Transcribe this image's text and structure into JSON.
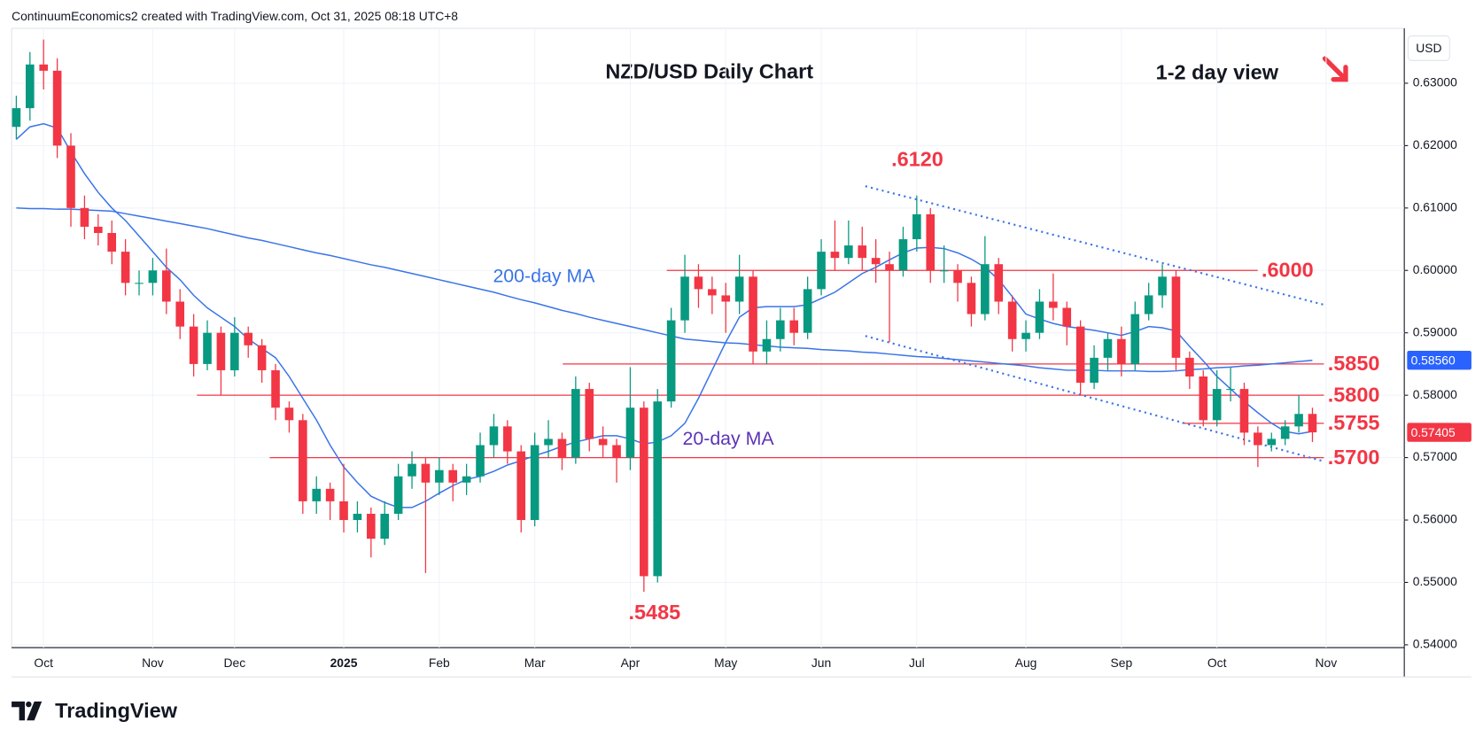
{
  "header": "ContinuumEconomics2 created with TradingView.com, Oct 31, 2025 08:18 UTC+8",
  "branding": "TradingView",
  "chart_data": {
    "type": "candlestick",
    "title": "NZD/USD Daily Chart",
    "subtitle": "1-2 day view",
    "currency": "USD",
    "categories": [
      null,
      null,
      "Oct",
      null,
      null,
      null,
      null,
      null,
      null,
      null,
      "Nov",
      null,
      null,
      null,
      null,
      null,
      "Dec",
      null,
      null,
      null,
      null,
      null,
      null,
      null,
      "2025",
      null,
      null,
      null,
      null,
      null,
      null,
      "Feb",
      null,
      null,
      null,
      null,
      null,
      null,
      "Mar",
      null,
      null,
      null,
      null,
      null,
      null,
      "Apr",
      null,
      null,
      null,
      null,
      null,
      null,
      "May",
      null,
      null,
      null,
      null,
      null,
      null,
      "Jun",
      null,
      null,
      null,
      null,
      null,
      null,
      "Jul",
      null,
      null,
      null,
      null,
      null,
      null,
      null,
      "Aug",
      null,
      null,
      null,
      null,
      null,
      null,
      "Sep",
      null,
      null,
      null,
      null,
      null,
      null,
      "Oct",
      null,
      null,
      null,
      null,
      null,
      null,
      null,
      "Nov"
    ],
    "open": [
      0.623,
      0.626,
      0.633,
      0.632,
      0.62,
      0.61,
      0.607,
      0.606,
      0.603,
      0.598,
      0.598,
      0.6,
      0.595,
      0.591,
      0.585,
      0.59,
      0.584,
      0.59,
      0.588,
      0.584,
      0.578,
      0.576,
      0.563,
      0.565,
      0.563,
      0.56,
      0.561,
      0.557,
      0.561,
      0.567,
      0.569,
      0.566,
      0.568,
      0.566,
      0.567,
      0.572,
      0.575,
      0.571,
      0.56,
      0.572,
      0.573,
      0.57,
      0.581,
      0.573,
      0.572,
      0.57,
      0.578,
      0.551,
      0.579,
      0.592,
      0.599,
      0.597,
      0.596,
      0.595,
      0.599,
      0.587,
      0.589,
      0.592,
      0.59,
      0.597,
      0.603,
      0.602,
      0.604,
      0.602,
      0.601,
      0.6,
      0.605,
      0.609,
      0.6,
      0.6,
      0.598,
      0.593,
      0.601,
      0.595,
      0.589,
      0.59,
      0.595,
      0.594,
      0.591,
      0.582,
      0.586,
      0.589,
      0.585,
      0.593,
      0.596,
      0.599,
      0.586,
      0.583,
      0.576,
      0.581,
      0.581,
      0.574,
      0.572,
      0.573,
      0.575,
      0.577,
      null
    ],
    "high": [
      0.628,
      0.635,
      0.637,
      0.634,
      0.622,
      0.612,
      0.609,
      0.608,
      0.605,
      0.6,
      0.602,
      0.6035,
      0.597,
      0.593,
      0.592,
      0.591,
      0.5925,
      0.591,
      0.589,
      0.585,
      0.579,
      0.577,
      0.567,
      0.566,
      0.569,
      0.563,
      0.562,
      0.563,
      0.569,
      0.571,
      0.57,
      0.57,
      0.569,
      0.569,
      0.574,
      0.577,
      0.576,
      0.572,
      0.574,
      0.576,
      0.574,
      0.583,
      0.582,
      0.575,
      0.573,
      0.5845,
      0.579,
      0.581,
      0.594,
      0.6025,
      0.601,
      0.599,
      0.598,
      0.6025,
      0.6,
      0.592,
      0.594,
      0.594,
      0.599,
      0.605,
      0.608,
      0.608,
      0.607,
      0.605,
      0.603,
      0.607,
      0.612,
      0.61,
      0.604,
      0.601,
      0.599,
      0.6055,
      0.602,
      0.596,
      0.592,
      0.597,
      0.5995,
      0.595,
      0.592,
      0.588,
      0.59,
      0.591,
      0.595,
      0.598,
      0.601,
      0.6,
      0.587,
      0.584,
      0.584,
      0.5845,
      0.582,
      0.575,
      0.574,
      0.576,
      0.58,
      0.578,
      null
    ],
    "low": [
      0.621,
      0.624,
      0.629,
      0.618,
      0.607,
      0.605,
      0.604,
      0.601,
      0.596,
      0.596,
      0.596,
      0.593,
      0.589,
      0.583,
      0.584,
      0.58,
      0.583,
      0.586,
      0.582,
      0.576,
      0.574,
      0.561,
      0.561,
      0.56,
      0.558,
      0.558,
      0.554,
      0.556,
      0.56,
      0.565,
      0.5515,
      0.564,
      0.563,
      0.564,
      0.566,
      0.57,
      0.569,
      0.558,
      0.559,
      0.57,
      0.568,
      0.569,
      0.571,
      0.57,
      0.566,
      0.568,
      0.5485,
      0.55,
      0.578,
      0.59,
      0.594,
      0.593,
      0.59,
      0.593,
      0.585,
      0.585,
      0.587,
      0.588,
      0.589,
      0.596,
      0.6,
      0.601,
      0.6,
      0.598,
      0.5885,
      0.599,
      0.603,
      0.598,
      0.598,
      0.595,
      0.591,
      0.592,
      0.593,
      0.587,
      0.587,
      0.589,
      0.592,
      0.588,
      0.58,
      0.581,
      0.584,
      0.583,
      0.584,
      0.592,
      0.594,
      0.584,
      0.581,
      0.575,
      0.575,
      0.579,
      0.572,
      0.5685,
      0.571,
      0.572,
      0.574,
      0.5725,
      null
    ],
    "close": [
      0.626,
      0.633,
      0.632,
      0.62,
      0.61,
      0.607,
      0.606,
      0.603,
      0.598,
      0.598,
      0.6,
      0.595,
      0.591,
      0.585,
      0.59,
      0.584,
      0.59,
      0.588,
      0.584,
      0.578,
      0.576,
      0.563,
      0.565,
      0.563,
      0.56,
      0.561,
      0.557,
      0.561,
      0.567,
      0.569,
      0.566,
      0.568,
      0.566,
      0.567,
      0.572,
      0.575,
      0.571,
      0.56,
      0.572,
      0.573,
      0.57,
      0.581,
      0.573,
      0.572,
      0.57,
      0.578,
      0.551,
      0.579,
      0.592,
      0.599,
      0.597,
      0.596,
      0.595,
      0.599,
      0.587,
      0.589,
      0.592,
      0.59,
      0.597,
      0.603,
      0.602,
      0.604,
      0.602,
      0.601,
      0.6,
      0.605,
      0.609,
      0.6,
      0.6,
      0.598,
      0.593,
      0.601,
      0.595,
      0.589,
      0.59,
      0.595,
      0.594,
      0.591,
      0.582,
      0.586,
      0.589,
      0.585,
      0.593,
      0.596,
      0.599,
      0.586,
      0.583,
      0.576,
      0.581,
      0.581,
      0.574,
      0.572,
      0.573,
      0.575,
      0.577,
      0.57405,
      null
    ],
    "up_color": "#089981",
    "down_color": "#f23645",
    "series": [
      {
        "name": "200-day MA",
        "color": "#3a74e8",
        "label_color": "#3a74e8",
        "values": [
          0.61,
          0.6099,
          0.6099,
          0.6098,
          0.6098,
          0.6097,
          0.6096,
          0.6095,
          0.6091,
          0.6087,
          0.6083,
          0.6079,
          0.6075,
          0.6071,
          0.6067,
          0.6062,
          0.6057,
          0.6052,
          0.6048,
          0.6043,
          0.6038,
          0.6033,
          0.6028,
          0.6024,
          0.6019,
          0.6014,
          0.6009,
          0.6005,
          0.6,
          0.5995,
          0.599,
          0.5985,
          0.598,
          0.5975,
          0.597,
          0.5965,
          0.5959,
          0.5953,
          0.5948,
          0.5942,
          0.5936,
          0.5931,
          0.5925,
          0.592,
          0.5915,
          0.591,
          0.5905,
          0.59,
          0.5895,
          0.589,
          0.5888,
          0.5886,
          0.5884,
          0.5883,
          0.5881,
          0.5879,
          0.5877,
          0.5876,
          0.5875,
          0.5873,
          0.5872,
          0.5871,
          0.5869,
          0.5868,
          0.5866,
          0.5864,
          0.5862,
          0.5861,
          0.5859,
          0.5857,
          0.5855,
          0.5853,
          0.5851,
          0.5849,
          0.5847,
          0.5844,
          0.5842,
          0.584,
          0.584,
          0.584,
          0.5839,
          0.5839,
          0.5839,
          0.5838,
          0.5838,
          0.5839,
          0.5841,
          0.5842,
          0.5844,
          0.5845,
          0.5847,
          0.5848,
          0.585,
          0.5852,
          0.5854,
          0.5856,
          null
        ]
      },
      {
        "name": "20-day MA",
        "color": "#3a74e8",
        "label_color": "#5b34b8",
        "values": [
          0.621,
          0.623,
          0.6235,
          0.6228,
          0.619,
          0.6155,
          0.6125,
          0.61,
          0.608,
          0.6055,
          0.603,
          0.6005,
          0.5985,
          0.596,
          0.594,
          0.5925,
          0.591,
          0.589,
          0.5875,
          0.586,
          0.583,
          0.5795,
          0.576,
          0.572,
          0.5685,
          0.566,
          0.5638,
          0.5628,
          0.562,
          0.562,
          0.563,
          0.5643,
          0.5655,
          0.5665,
          0.567,
          0.5678,
          0.5688,
          0.5695,
          0.5703,
          0.571,
          0.5718,
          0.5725,
          0.573,
          0.5735,
          0.5735,
          0.573,
          0.5722,
          0.5725,
          0.5735,
          0.5755,
          0.5795,
          0.584,
          0.5885,
          0.5925,
          0.594,
          0.5942,
          0.5942,
          0.5942,
          0.5945,
          0.5955,
          0.5965,
          0.598,
          0.5995,
          0.6005,
          0.6017,
          0.6028,
          0.6036,
          0.6037,
          0.6035,
          0.6028,
          0.6018,
          0.6005,
          0.5985,
          0.5958,
          0.593,
          0.5922,
          0.5915,
          0.591,
          0.5907,
          0.5904,
          0.59,
          0.5896,
          0.5902,
          0.591,
          0.5908,
          0.5903,
          0.5878,
          0.5855,
          0.583,
          0.581,
          0.579,
          0.5772,
          0.5755,
          0.5742,
          0.5738,
          0.5742,
          null
        ]
      }
    ],
    "levels": [
      {
        "value": 0.6,
        "label": ".6000"
      },
      {
        "value": 0.585,
        "label": ".5850"
      },
      {
        "value": 0.58,
        "label": ".5800"
      },
      {
        "value": 0.5755,
        "label": ".5755"
      },
      {
        "value": 0.57,
        "label": ".5700"
      }
    ],
    "level_color": "#f23645",
    "annotations": [
      {
        "value": 0.612,
        "label": ".6120"
      },
      {
        "value": 0.5485,
        "label": ".5485"
      }
    ],
    "trendlines": [
      {
        "values": [
          0.6135,
          0.5945
        ]
      },
      {
        "values": [
          0.5895,
          0.5694
        ]
      }
    ],
    "trendline_color": "#3a74e8",
    "last_labels": [
      {
        "value": 0.5856,
        "label": "0.58560",
        "color": "#2962ff"
      },
      {
        "value": 0.57405,
        "label": "0.57405",
        "color": "#f23645"
      }
    ],
    "ylim": [
      0.53955,
      0.63879
    ],
    "yticks": [
      {
        "value": 0.63,
        "label": "0.63000"
      },
      {
        "value": 0.62,
        "label": "0.62000"
      },
      {
        "value": 0.61,
        "label": "0.61000"
      },
      {
        "value": 0.6,
        "label": "0.60000"
      },
      {
        "value": 0.59,
        "label": "0.59000"
      },
      {
        "value": 0.58,
        "label": "0.58000"
      },
      {
        "value": 0.57,
        "label": "0.57000"
      },
      {
        "value": 0.56,
        "label": "0.56000"
      },
      {
        "value": 0.55,
        "label": "0.55000"
      },
      {
        "value": 0.54,
        "label": "0.54000"
      }
    ],
    "grid": true
  }
}
